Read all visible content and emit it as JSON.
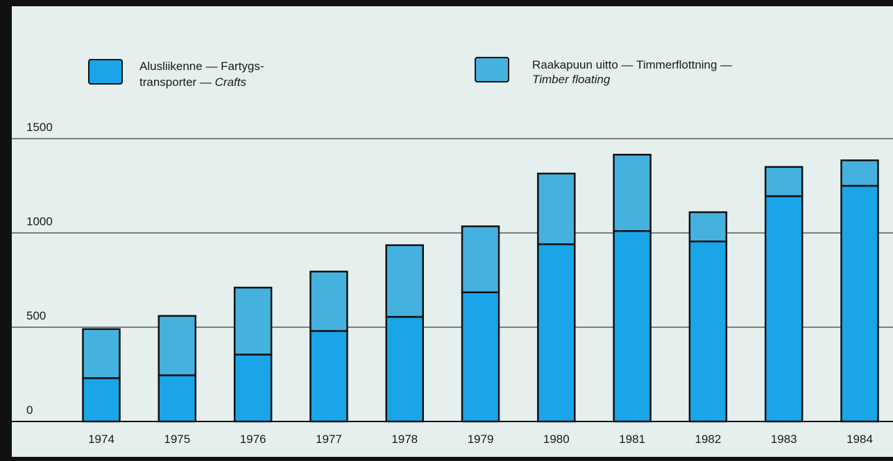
{
  "chart_data": {
    "type": "bar",
    "stacked": true,
    "title": "",
    "xlabel": "",
    "ylabel": "",
    "categories": [
      "1974",
      "1975",
      "1976",
      "1977",
      "1978",
      "1979",
      "1980",
      "1981",
      "1982",
      "1983",
      "1984"
    ],
    "series": [
      {
        "name_parts": [
          "Alusliikenne — Fartygs-",
          "transporter — ",
          "Crafts"
        ],
        "color": "#1aa5e8",
        "values": [
          230,
          245,
          355,
          480,
          555,
          685,
          940,
          1010,
          955,
          1195,
          1250
        ]
      },
      {
        "name_parts": [
          "Raakapuun uitto — Timmerflottning —",
          "Timber floating"
        ],
        "color": "#45b1de",
        "values": [
          260,
          315,
          355,
          315,
          380,
          350,
          375,
          405,
          155,
          155,
          135
        ]
      }
    ],
    "yticks": [
      "0",
      "500",
      "1000",
      "1500"
    ],
    "ylim": [
      0,
      1500
    ],
    "grid": true,
    "legend_position": "top"
  }
}
